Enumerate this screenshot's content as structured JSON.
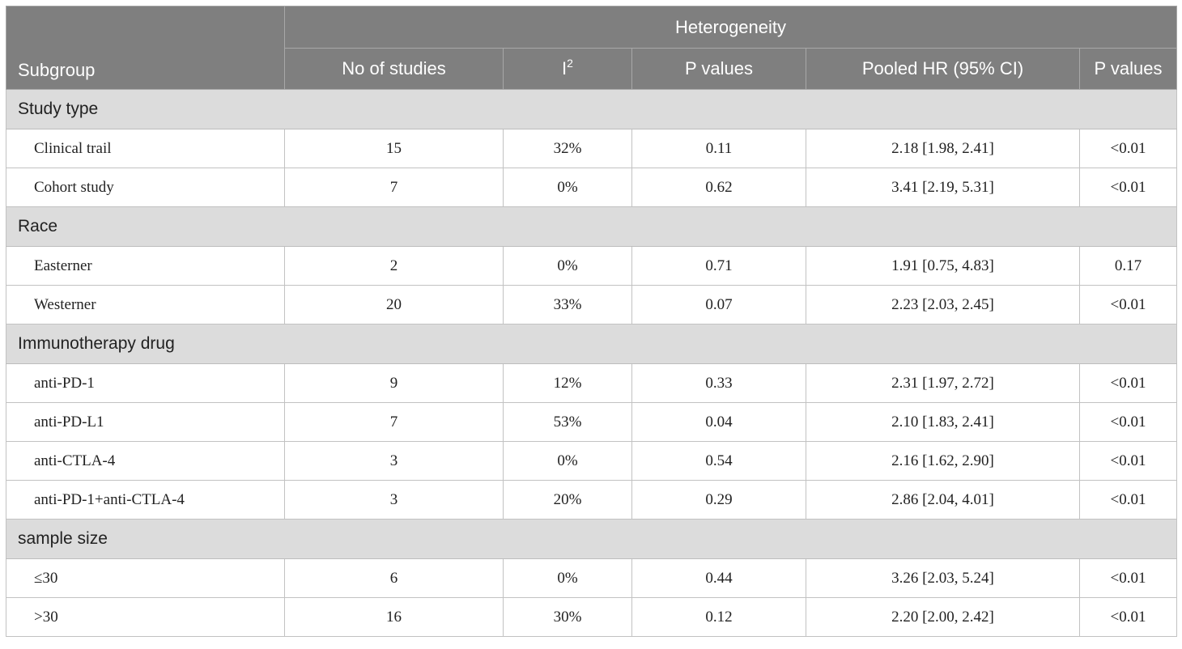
{
  "header": {
    "subgroup": "Subgroup",
    "heterogeneity": "Heterogeneity",
    "no_of_studies": "No of studies",
    "i2_base": "I",
    "i2_sup": "2",
    "p_values_het": "P values",
    "pooled_hr": "Pooled HR (95% CI)",
    "p_values": "P values"
  },
  "groups": [
    {
      "category": "Study type",
      "rows": [
        {
          "label": "Clinical trail",
          "studies": "15",
          "i2": "32%",
          "p_het": "0.11",
          "hr": "2.18 [1.98, 2.41]",
          "p": "<0.01"
        },
        {
          "label": "Cohort study",
          "studies": "7",
          "i2": "0%",
          "p_het": "0.62",
          "hr": "3.41 [2.19, 5.31]",
          "p": "<0.01"
        }
      ]
    },
    {
      "category": "Race",
      "rows": [
        {
          "label": "Easterner",
          "studies": "2",
          "i2": "0%",
          "p_het": "0.71",
          "hr": "1.91 [0.75, 4.83]",
          "p": "0.17"
        },
        {
          "label": "Westerner",
          "studies": "20",
          "i2": "33%",
          "p_het": "0.07",
          "hr": "2.23 [2.03, 2.45]",
          "p": "<0.01"
        }
      ]
    },
    {
      "category": "Immunotherapy drug",
      "rows": [
        {
          "label": "anti-PD-1",
          "studies": "9",
          "i2": "12%",
          "p_het": "0.33",
          "hr": "2.31 [1.97, 2.72]",
          "p": "<0.01"
        },
        {
          "label": "anti-PD-L1",
          "studies": "7",
          "i2": "53%",
          "p_het": "0.04",
          "hr": "2.10 [1.83, 2.41]",
          "p": "<0.01"
        },
        {
          "label": "anti-CTLA-4",
          "studies": "3",
          "i2": "0%",
          "p_het": "0.54",
          "hr": "2.16 [1.62, 2.90]",
          "p": "<0.01"
        },
        {
          "label": "anti-PD-1+anti-CTLA-4",
          "studies": "3",
          "i2": "20%",
          "p_het": "0.29",
          "hr": "2.86 [2.04, 4.01]",
          "p": "<0.01"
        }
      ]
    },
    {
      "category": "sample size",
      "rows": [
        {
          "label": "≤30",
          "studies": "6",
          "i2": "0%",
          "p_het": "0.44",
          "hr": "3.26 [2.03, 5.24]",
          "p": "<0.01"
        },
        {
          "label": ">30",
          "studies": "16",
          "i2": "30%",
          "p_het": "0.12",
          "hr": "2.20 [2.00, 2.42]",
          "p": "<0.01"
        }
      ]
    }
  ]
}
